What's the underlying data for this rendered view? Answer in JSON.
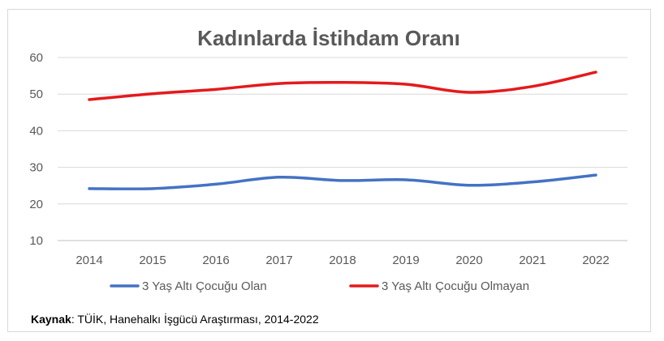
{
  "chart_data": {
    "type": "line",
    "title": "Kadınlarda İstihdam Oranı",
    "categories": [
      "2014",
      "2015",
      "2016",
      "2017",
      "2018",
      "2019",
      "2020",
      "2021",
      "2022"
    ],
    "ylim": [
      10,
      60
    ],
    "yticks": [
      10,
      20,
      30,
      40,
      50,
      60
    ],
    "grid": true,
    "legend_position": "bottom",
    "series": [
      {
        "name": "3 Yaş Altı Çocuğu Olan",
        "color": "#4472c4",
        "values": [
          24.2,
          24.2,
          25.4,
          27.3,
          26.4,
          26.6,
          25.1,
          26.0,
          27.9
        ]
      },
      {
        "name": "3 Yaş Altı Çocuğu Olmayan",
        "color": "#e41a1c",
        "values": [
          48.5,
          50.1,
          51.3,
          52.9,
          53.2,
          52.7,
          50.5,
          52.1,
          56.0
        ]
      }
    ]
  },
  "source": {
    "label": "Kaynak",
    "text": ": TÜİK, Hanehalkı İşgücü Araştırması, 2014-2022"
  }
}
